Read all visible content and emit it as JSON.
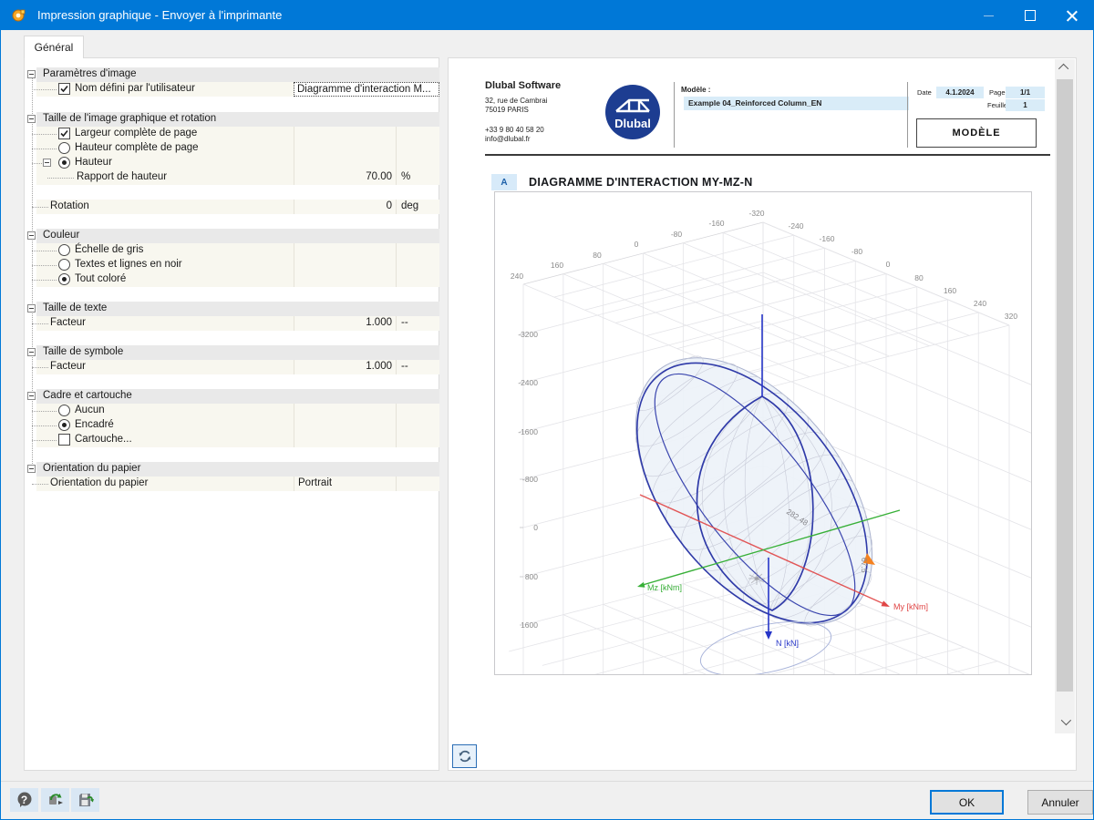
{
  "window": {
    "title": "Impression graphique - Envoyer à l'imprimante"
  },
  "tabs": {
    "general": "Général"
  },
  "icons": {
    "titlebar": "dlubal-print-icon",
    "help": "help-bubble-icon",
    "apply": "apply-settings-icon",
    "save": "save-defaults-icon",
    "refresh": "refresh-icon",
    "help_glyph": "?"
  },
  "panel": {
    "sections": [
      {
        "title": "Paramètres d'image"
      },
      {
        "title": "Taille de l'image graphique et rotation"
      },
      {
        "title": "Couleur"
      },
      {
        "title": "Taille de texte"
      },
      {
        "title": "Taille de symbole"
      },
      {
        "title": "Cadre et cartouche"
      },
      {
        "title": "Orientation du papier"
      }
    ],
    "rows": {
      "user_name": {
        "label": "Nom défini par l'utilisateur",
        "value": "Diagramme d'interaction M..."
      },
      "full_width": {
        "label": "Largeur complète de page"
      },
      "full_height": {
        "label": "Hauteur complète de page"
      },
      "height": {
        "label": "Hauteur"
      },
      "height_ratio": {
        "label": "Rapport de hauteur",
        "value": "70.00",
        "unit": "%"
      },
      "rotation": {
        "label": "Rotation",
        "value": "0",
        "unit": "deg"
      },
      "grayscale": {
        "label": "Échelle de gris"
      },
      "black_lines": {
        "label": "Textes et lignes en noir"
      },
      "all_colored": {
        "label": "Tout coloré"
      },
      "text_factor": {
        "label": "Facteur",
        "value": "1.000",
        "unit": "--"
      },
      "symbol_factor": {
        "label": "Facteur",
        "value": "1.000",
        "unit": "--"
      },
      "frame_none": {
        "label": "Aucun"
      },
      "framed": {
        "label": "Encadré"
      },
      "titleblock": {
        "label": "Cartouche..."
      },
      "paper": {
        "label": "Orientation du papier",
        "value": "Portrait"
      }
    }
  },
  "preview": {
    "company": "Dlubal Software",
    "address1": "32, rue de Cambrai",
    "address2": "75019 PARIS",
    "phone": "+33 9 80 40 58 20",
    "email": "info@dlubal.fr",
    "logo_text": "Dlubal",
    "model_label": "Modèle :",
    "model_value": "Example 04_Reinforced Column_EN",
    "date_label": "Date",
    "date_value": "4.1.2024",
    "page_label": "Page",
    "page_value": "1/1",
    "sheet_label": "Feuille",
    "sheet_value": "1",
    "block_title": "MODÈLE",
    "section_marker": "A",
    "diagram_title": "DIAGRAMME D'INTERACTION MY-MZ-N"
  },
  "buttons": {
    "ok": "OK",
    "cancel": "Annuler"
  },
  "chart_data": {
    "type": "3d-surface",
    "title": "Diagramme d'interaction My-Mz-N",
    "description": "Ellipsoidal M-N interaction surface for reinforced column, gray wireframe mesh with dark blue section curves, shown in axonometric 3D box",
    "axes": {
      "mz": {
        "label": "Mz [kNm]",
        "color": "#38b038",
        "ticks": [
          240,
          160,
          80,
          0,
          -80,
          -160,
          -320
        ]
      },
      "my": {
        "label": "My [kNm]",
        "color": "#e04545",
        "ticks": [
          -240,
          -160,
          -80,
          0,
          80,
          160,
          240,
          320
        ]
      },
      "n": {
        "label": "N [kN]",
        "color": "#2635c8",
        "ticks": [
          -3200,
          -2400,
          -1600,
          -800,
          0,
          800,
          1600
        ]
      }
    },
    "annotations": [
      "282.48",
      "67.5"
    ],
    "marker_color": "#f58220",
    "surface_stroke": "#2f3aa8",
    "grid_on": true
  }
}
